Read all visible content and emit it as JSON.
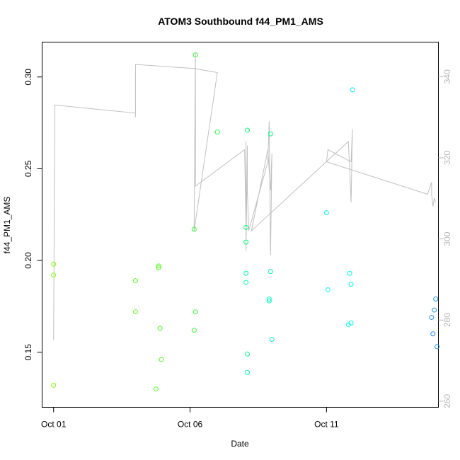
{
  "chart_data": {
    "type": "scatter",
    "title": "ATOM3 Southbound f44_PM1_AMS",
    "xlabel": "Date",
    "ylabel": "f44_PM1_AMS",
    "x_ticks": [
      "Oct 01",
      "Oct 06",
      "Oct 11"
    ],
    "y_ticks": [
      "0.15",
      "0.20",
      "0.25",
      "0.30"
    ],
    "y2_ticks": [
      "260",
      "280",
      "300",
      "320",
      "340"
    ],
    "xlim_days": [
      -0.42,
      14.1
    ],
    "ylim": [
      0.12,
      0.319
    ],
    "y2lim": [
      258.5,
      348.5
    ],
    "colors": {
      "line": "#c0c0c0",
      "axis": "#000000",
      "y2_axis": "#b8b8b8"
    },
    "series": [
      {
        "values": [
          {
            "day": 0.0,
            "y": 0.198,
            "color": "#7fff00"
          },
          {
            "day": 0.0,
            "y": 0.192,
            "color": "#7fff00"
          },
          {
            "day": 0.0,
            "y": 0.132,
            "color": "#7fff00"
          },
          {
            "day": 3.0,
            "y": 0.189,
            "color": "#5cff16"
          },
          {
            "day": 3.0,
            "y": 0.172,
            "color": "#5cff16"
          },
          {
            "day": 3.75,
            "y": 0.13,
            "color": "#4dff1f"
          },
          {
            "day": 3.85,
            "y": 0.197,
            "color": "#4dff1f"
          },
          {
            "day": 3.85,
            "y": 0.196,
            "color": "#4dff1f"
          },
          {
            "day": 3.9,
            "y": 0.163,
            "color": "#4dff1f"
          },
          {
            "day": 3.95,
            "y": 0.146,
            "color": "#4dff1f"
          },
          {
            "day": 5.15,
            "y": 0.217,
            "color": "#33ff33"
          },
          {
            "day": 5.15,
            "y": 0.162,
            "color": "#33ff33"
          },
          {
            "day": 5.2,
            "y": 0.312,
            "color": "#33ff33"
          },
          {
            "day": 5.2,
            "y": 0.172,
            "color": "#33ff33"
          },
          {
            "day": 6.0,
            "y": 0.27,
            "color": "#22ff44"
          },
          {
            "day": 7.05,
            "y": 0.218,
            "color": "#00ff7f"
          },
          {
            "day": 7.05,
            "y": 0.21,
            "color": "#00ff7f"
          },
          {
            "day": 7.05,
            "y": 0.193,
            "color": "#00ff99"
          },
          {
            "day": 7.05,
            "y": 0.188,
            "color": "#00ff99"
          },
          {
            "day": 7.1,
            "y": 0.271,
            "color": "#00ff66"
          },
          {
            "day": 7.1,
            "y": 0.149,
            "color": "#00ff99"
          },
          {
            "day": 7.1,
            "y": 0.139,
            "color": "#00ffaa"
          },
          {
            "day": 7.9,
            "y": 0.179,
            "color": "#00ffbb"
          },
          {
            "day": 7.9,
            "y": 0.178,
            "color": "#00ffbb"
          },
          {
            "day": 7.95,
            "y": 0.269,
            "color": "#00ff88"
          },
          {
            "day": 7.95,
            "y": 0.194,
            "color": "#00ffbb"
          },
          {
            "day": 8.0,
            "y": 0.157,
            "color": "#00ffcc"
          },
          {
            "day": 10.0,
            "y": 0.226,
            "color": "#00ffee"
          },
          {
            "day": 10.05,
            "y": 0.184,
            "color": "#00ffee"
          },
          {
            "day": 10.8,
            "y": 0.165,
            "color": "#00ffee"
          },
          {
            "day": 10.85,
            "y": 0.193,
            "color": "#00ffee"
          },
          {
            "day": 10.9,
            "y": 0.187,
            "color": "#00ffee"
          },
          {
            "day": 10.9,
            "y": 0.166,
            "color": "#00ffee"
          },
          {
            "day": 10.95,
            "y": 0.293,
            "color": "#00eeff"
          },
          {
            "day": 13.85,
            "y": 0.169,
            "color": "#1e90ff"
          },
          {
            "day": 13.9,
            "y": 0.16,
            "color": "#1e90ff"
          },
          {
            "day": 13.95,
            "y": 0.173,
            "color": "#1e90ff"
          },
          {
            "day": 14.0,
            "y": 0.179,
            "color": "#1e90ff"
          },
          {
            "day": 14.05,
            "y": 0.153,
            "color": "#1e90ff"
          }
        ]
      },
      {
        "axis": "right",
        "values": [
          {
            "day": 0.0,
            "y": 275
          },
          {
            "day": 0.05,
            "y": 333
          },
          {
            "day": 3.0,
            "y": 331
          },
          {
            "day": 3.0,
            "y": 330
          },
          {
            "day": 3.0,
            "y": 343
          },
          {
            "day": 5.15,
            "y": 342
          },
          {
            "day": 6.0,
            "y": 341
          },
          {
            "day": 5.15,
            "y": 302
          },
          {
            "day": 5.2,
            "y": 346
          },
          {
            "day": 5.2,
            "y": 313
          },
          {
            "day": 7.0,
            "y": 322
          },
          {
            "day": 7.05,
            "y": 303
          },
          {
            "day": 7.05,
            "y": 324
          },
          {
            "day": 7.05,
            "y": 297
          },
          {
            "day": 7.1,
            "y": 323
          },
          {
            "day": 7.1,
            "y": 312
          },
          {
            "day": 7.15,
            "y": 302
          },
          {
            "day": 7.85,
            "y": 319
          },
          {
            "day": 7.9,
            "y": 329
          },
          {
            "day": 7.95,
            "y": 296
          },
          {
            "day": 8.0,
            "y": 321
          },
          {
            "day": 7.95,
            "y": 312
          },
          {
            "day": 7.85,
            "y": 322
          },
          {
            "day": 7.25,
            "y": 302
          },
          {
            "day": 10.8,
            "y": 324
          },
          {
            "day": 10.85,
            "y": 317
          },
          {
            "day": 10.9,
            "y": 309
          },
          {
            "day": 10.95,
            "y": 327
          },
          {
            "day": 10.9,
            "y": 319
          },
          {
            "day": 10.05,
            "y": 322
          },
          {
            "day": 10.0,
            "y": 319
          },
          {
            "day": 13.7,
            "y": 311
          },
          {
            "day": 13.85,
            "y": 314
          },
          {
            "day": 13.85,
            "y": 311
          },
          {
            "day": 13.9,
            "y": 308
          },
          {
            "day": 13.95,
            "y": 310
          },
          {
            "day": 14.0,
            "y": 309
          }
        ]
      }
    ]
  }
}
